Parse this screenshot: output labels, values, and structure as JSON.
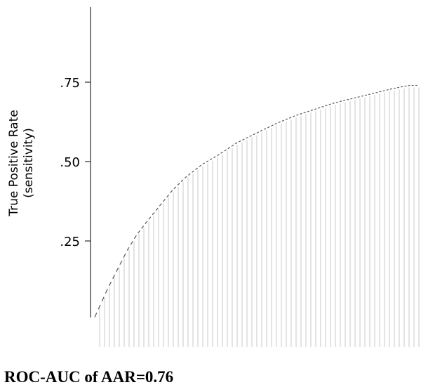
{
  "chart_data": {
    "type": "line",
    "title": "",
    "ylabel_lines": [
      "True Positive Rate",
      "(sensitivity)"
    ],
    "xlabel": "",
    "ylim": [
      0,
      0.85
    ],
    "y_ticks": [
      {
        "value": 0.25,
        "label": ".25"
      },
      {
        "value": 0.5,
        "label": ".50"
      },
      {
        "value": 0.75,
        "label": ".75"
      }
    ],
    "series": [
      {
        "x": [
          0.0,
          0.04,
          0.07,
          0.1,
          0.13,
          0.16,
          0.2,
          0.24,
          0.28,
          0.33,
          0.38,
          0.44,
          0.5,
          0.56,
          0.62,
          0.68,
          0.74,
          0.8,
          0.86,
          0.92,
          0.97,
          1.0
        ],
        "values": [
          0.01,
          0.1,
          0.16,
          0.22,
          0.27,
          0.31,
          0.36,
          0.41,
          0.45,
          0.49,
          0.52,
          0.56,
          0.59,
          0.62,
          0.645,
          0.665,
          0.685,
          0.7,
          0.715,
          0.73,
          0.74,
          0.74
        ]
      }
    ],
    "grid": false
  },
  "caption": "ROC-AUC of AAR=0.76"
}
